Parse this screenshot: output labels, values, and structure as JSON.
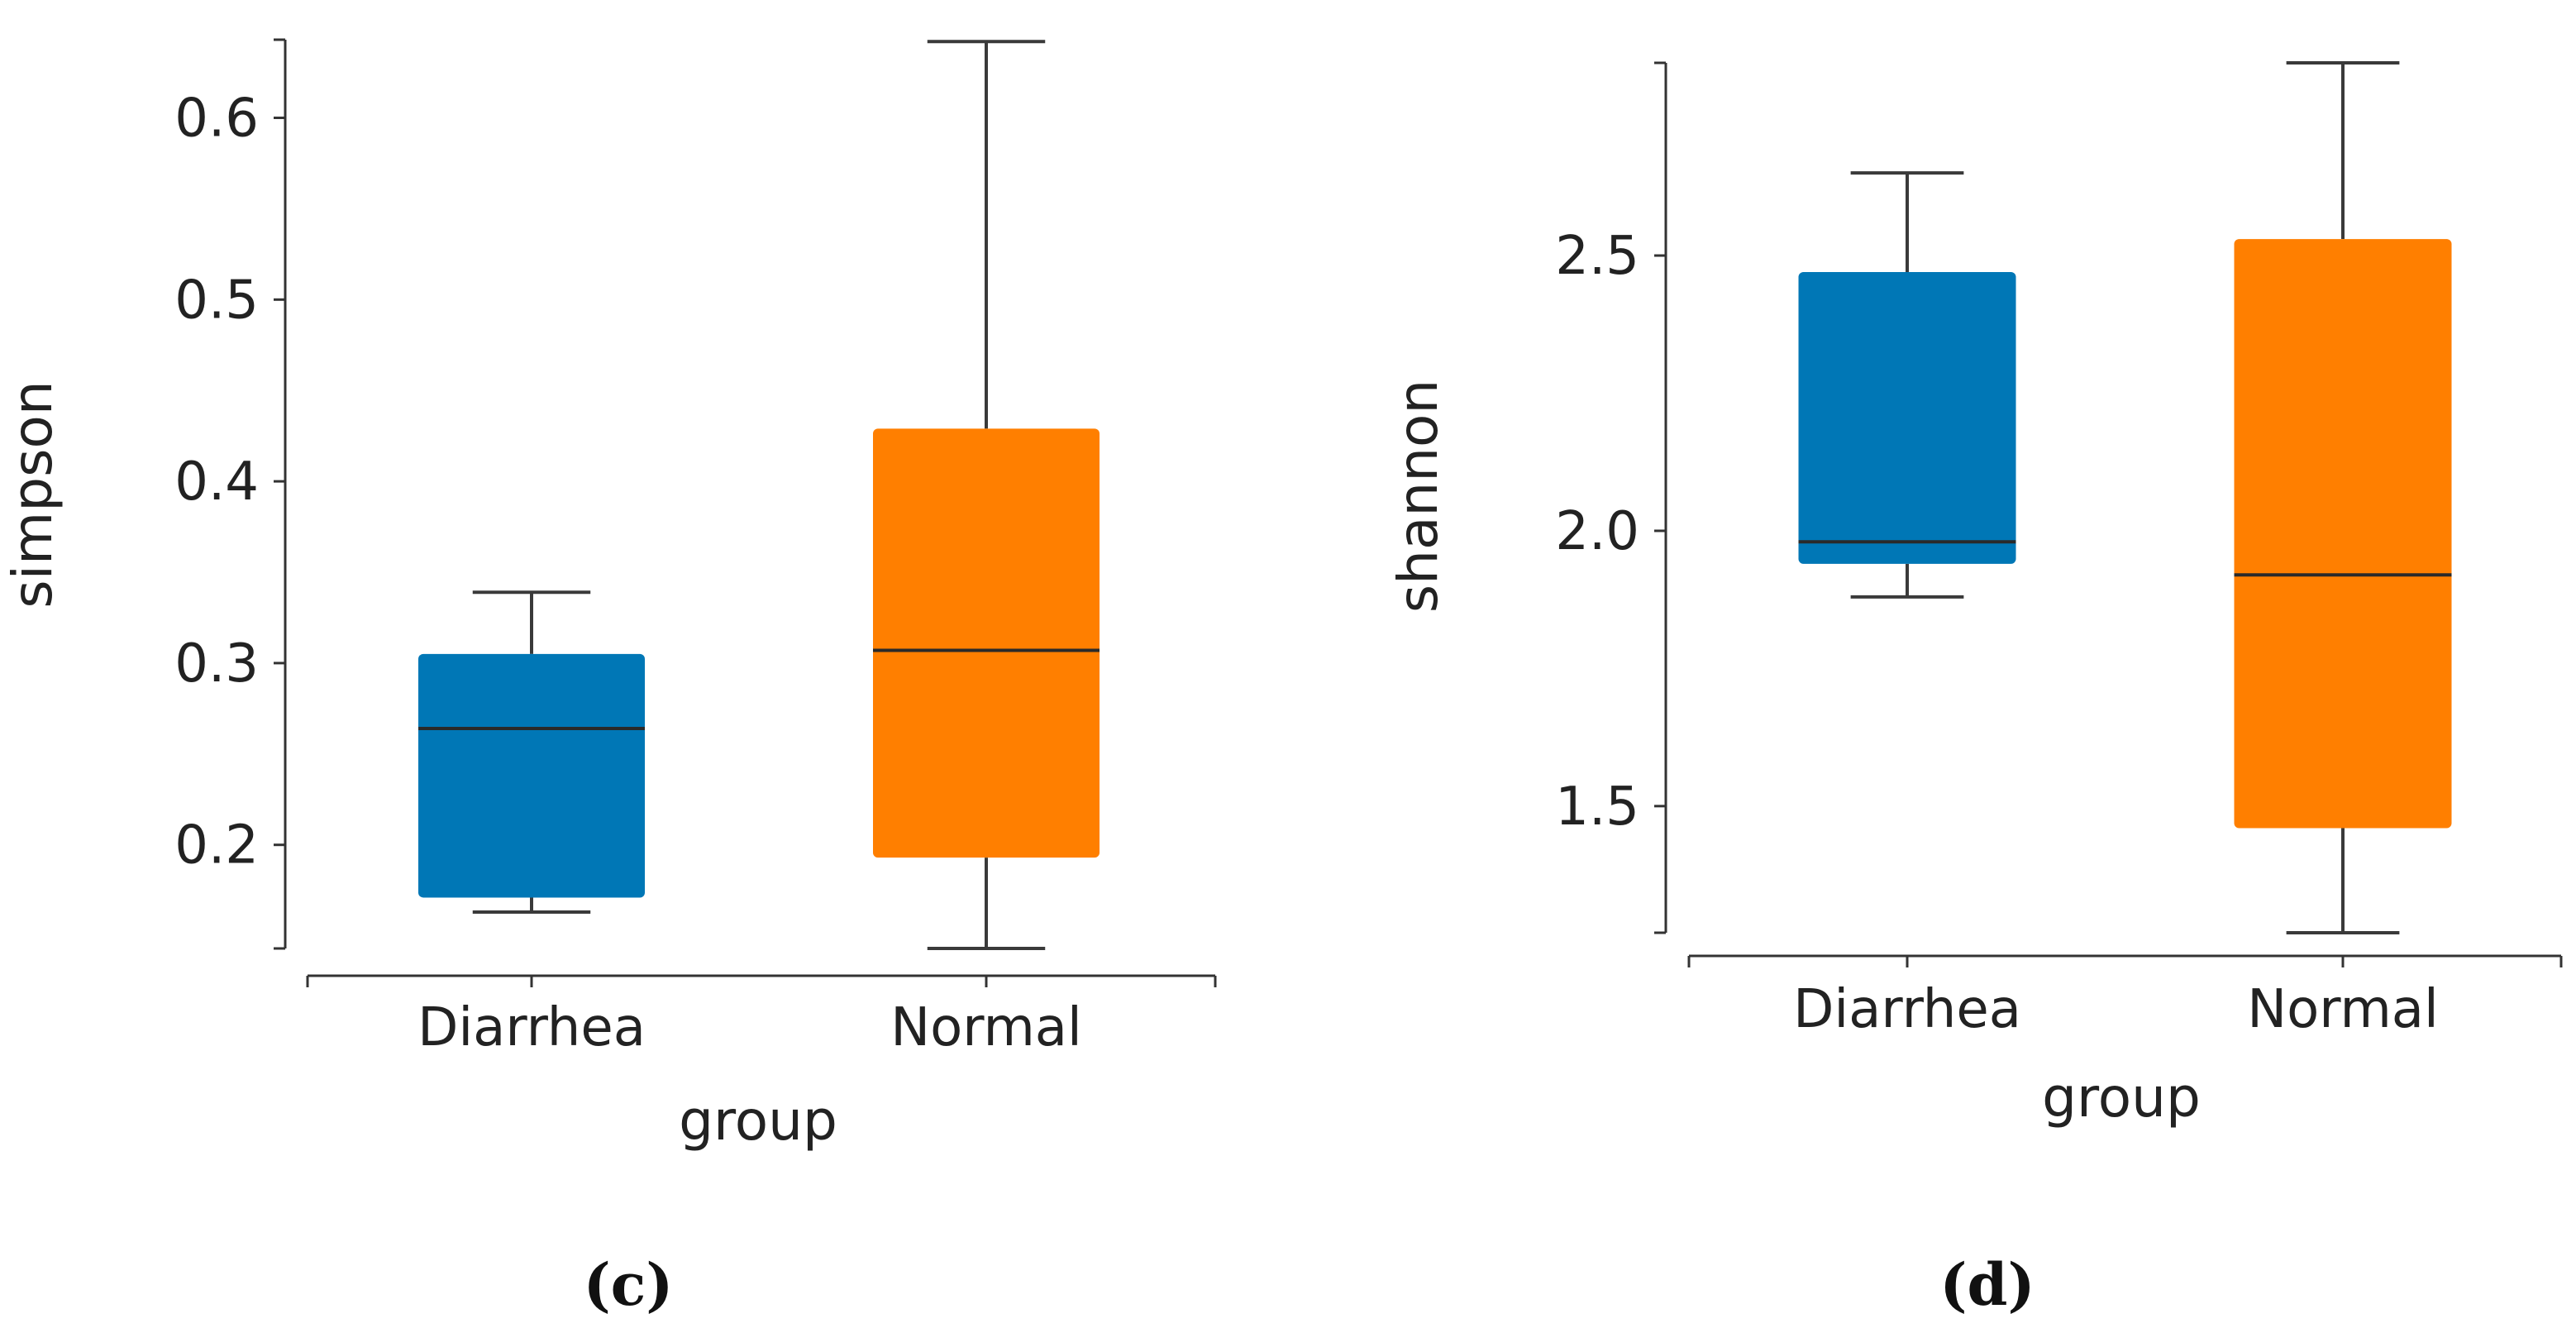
{
  "chart_data": [
    {
      "type": "box",
      "panel_label": "(c)",
      "xlabel": "group",
      "ylabel": "simpson",
      "categories": [
        "Diarrhea",
        "Normal"
      ],
      "ylim": [
        0.143,
        0.643
      ],
      "yticks": [
        0.2,
        0.3,
        0.4,
        0.5,
        0.6
      ],
      "ytick_labels": [
        "0.2",
        "0.3",
        "0.4",
        "0.5",
        "0.6"
      ],
      "boxes": [
        {
          "group": "Diarrhea",
          "whisker_low": 0.163,
          "q1": 0.171,
          "median": 0.264,
          "q3": 0.305,
          "whisker_high": 0.339,
          "color": "#0077b6"
        },
        {
          "group": "Normal",
          "whisker_low": 0.143,
          "q1": 0.193,
          "median": 0.307,
          "q3": 0.429,
          "whisker_high": 0.642,
          "color": "#ff7f00"
        }
      ]
    },
    {
      "type": "box",
      "panel_label": "(d)",
      "xlabel": "group",
      "ylabel": "shannon",
      "categories": [
        "Diarrhea",
        "Normal"
      ],
      "ylim": [
        1.27,
        2.85
      ],
      "yticks": [
        1.5,
        2.0,
        2.5
      ],
      "ytick_labels": [
        "1.5",
        "2.0",
        "2.5"
      ],
      "boxes": [
        {
          "group": "Diarrhea",
          "whisker_low": 1.88,
          "q1": 1.94,
          "median": 1.98,
          "q3": 2.47,
          "whisker_high": 2.65,
          "color": "#0077b6"
        },
        {
          "group": "Normal",
          "whisker_low": 1.27,
          "q1": 1.46,
          "median": 1.92,
          "q3": 2.53,
          "whisker_high": 2.85,
          "color": "#ff7f00"
        }
      ]
    }
  ]
}
